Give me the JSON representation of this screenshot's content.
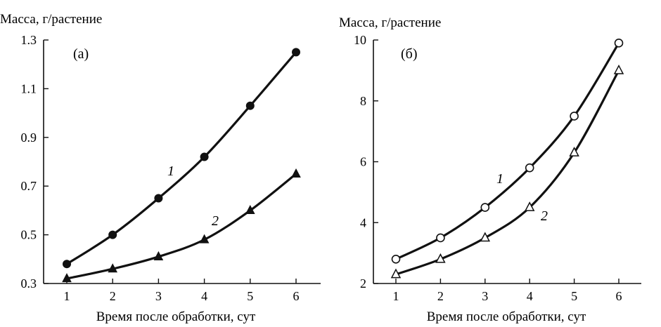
{
  "chart_data": [
    {
      "type": "line",
      "panel_label": "(а)",
      "title": "Масса, г/растение",
      "xlabel": "Время после обработки, сут",
      "ylabel": "",
      "x": [
        1,
        2,
        3,
        4,
        5,
        6
      ],
      "xlim": [
        1,
        6
      ],
      "ylim": [
        0.3,
        1.3
      ],
      "xticks": [
        "1",
        "2",
        "3",
        "4",
        "5",
        "6"
      ],
      "yticks": [
        "0.3",
        "0.5",
        "0.7",
        "0.9",
        "1.1",
        "1.3"
      ],
      "series": [
        {
          "label": "1",
          "marker": "filled-circle",
          "values": [
            0.38,
            0.5,
            0.65,
            0.82,
            1.03,
            1.25
          ]
        },
        {
          "label": "2",
          "marker": "filled-triangle",
          "values": [
            0.32,
            0.36,
            0.41,
            0.48,
            0.6,
            0.75
          ]
        }
      ]
    },
    {
      "type": "line",
      "panel_label": "(б)",
      "title": "Масса, г/растение",
      "xlabel": "Время после обработки, сут",
      "ylabel": "",
      "x": [
        1,
        2,
        3,
        4,
        5,
        6
      ],
      "xlim": [
        1,
        6
      ],
      "ylim": [
        2,
        10
      ],
      "xticks": [
        "1",
        "2",
        "3",
        "4",
        "5",
        "6"
      ],
      "yticks": [
        "2",
        "4",
        "6",
        "8",
        "10"
      ],
      "series": [
        {
          "label": "1",
          "marker": "open-circle",
          "values": [
            2.8,
            3.5,
            4.5,
            5.8,
            7.5,
            9.9
          ]
        },
        {
          "label": "2",
          "marker": "open-triangle",
          "values": [
            2.3,
            2.8,
            3.5,
            4.5,
            6.3,
            9.0
          ]
        }
      ]
    }
  ]
}
